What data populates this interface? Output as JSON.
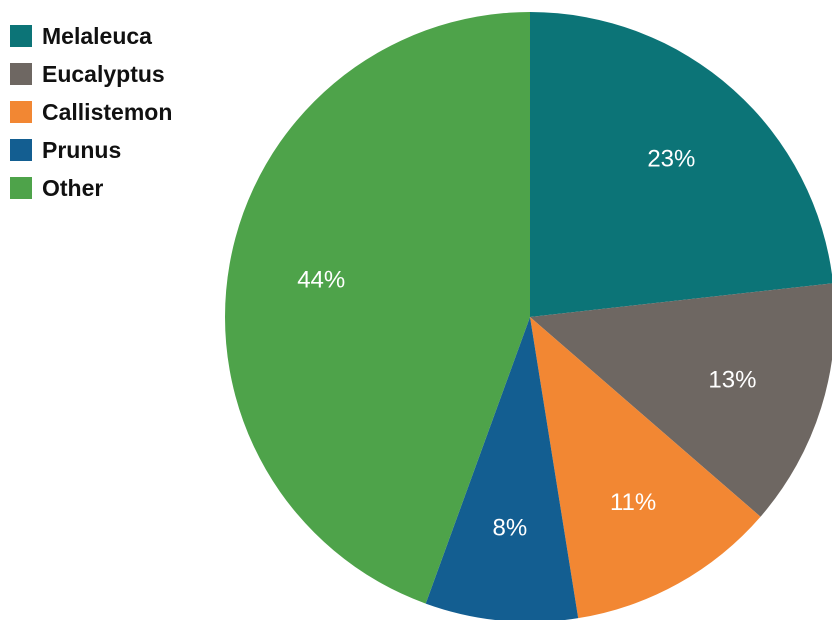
{
  "chart_data": {
    "type": "pie",
    "title": "",
    "slices": [
      {
        "label": "Melaleuca",
        "value": 23,
        "value_label": "23%",
        "color": "#0c7477"
      },
      {
        "label": "Eucalyptus",
        "value": 13,
        "value_label": "13%",
        "color": "#6e6762"
      },
      {
        "label": "Callistemon",
        "value": 11,
        "value_label": "11%",
        "color": "#f28733"
      },
      {
        "label": "Prunus",
        "value": 8,
        "value_label": "8%",
        "color": "#135e91"
      },
      {
        "label": "Other",
        "value": 44,
        "value_label": "44%",
        "color": "#4ea34a"
      }
    ],
    "start_angle": "12 o'clock",
    "direction": "clockwise",
    "legend_position": "top-left"
  }
}
